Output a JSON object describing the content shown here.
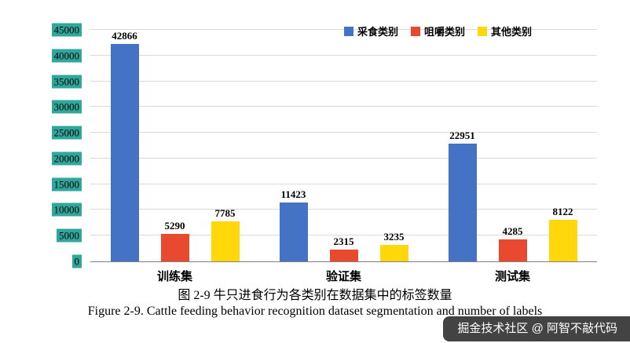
{
  "chart_data": {
    "type": "bar",
    "title": "",
    "categories": [
      "训练集",
      "验证集",
      "测试集"
    ],
    "series": [
      {
        "name": "采食类别",
        "color": "#4472c4",
        "values": [
          42866,
          11423,
          22951
        ]
      },
      {
        "name": "咀嚼类别",
        "color": "#e8492f",
        "values": [
          5290,
          2315,
          4285
        ]
      },
      {
        "name": "其他类别",
        "color": "#ffd70a",
        "values": [
          7785,
          3235,
          8122
        ]
      }
    ],
    "ylim": [
      0,
      45000
    ],
    "ytick_step": 5000,
    "grid": true,
    "legend_position": "top-right",
    "ytick_highlight_color": "#2fa79b",
    "xlabel": "",
    "ylabel": ""
  },
  "captions": {
    "zh": "图 2-9 牛只进食行为各类别在数据集中的标签数量",
    "en": "Figure 2-9. Cattle feeding behavior recognition dataset segmentation and number of labels"
  },
  "watermark": {
    "text": "掘金技术社区 @ 阿智不敲代码"
  }
}
